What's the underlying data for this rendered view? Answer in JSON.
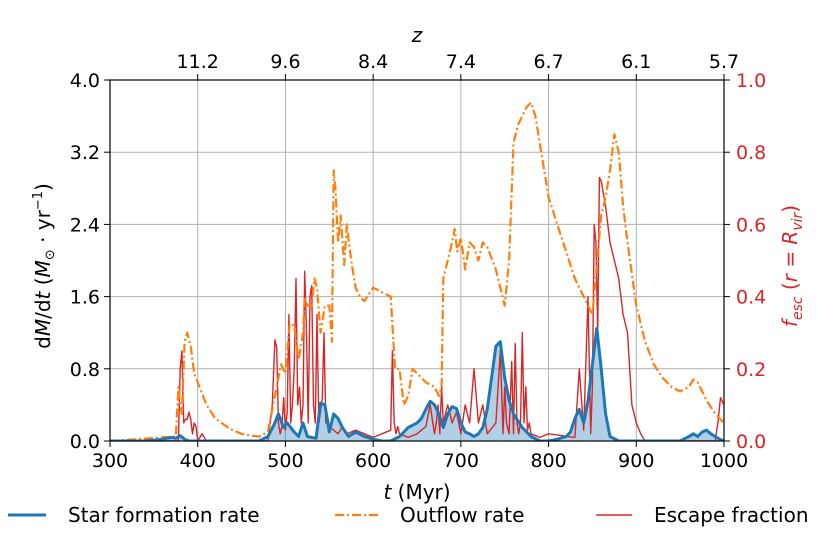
{
  "chart_data": {
    "type": "line",
    "xlabel": "t (Myr)",
    "ylabel": "dM/dt (M⊙ · yr⁻¹)",
    "y2label": "f_esc (r = R_vir)",
    "x2label": "z",
    "xlim": [
      300,
      1000
    ],
    "ylim": [
      0,
      4.0
    ],
    "y2lim": [
      0,
      1.0
    ],
    "grid": true,
    "xticks": [
      "300",
      "400",
      "500",
      "600",
      "700",
      "800",
      "900",
      "1000"
    ],
    "yticks": [
      "0.0",
      "0.8",
      "1.6",
      "2.4",
      "3.2",
      "4.0"
    ],
    "y2ticks": [
      "0.0",
      "0.2",
      "0.4",
      "0.6",
      "0.8",
      "1.0"
    ],
    "top_ticks": [
      {
        "label": "11.2",
        "t": 400
      },
      {
        "label": "9.6",
        "t": 500
      },
      {
        "label": "8.4",
        "t": 600
      },
      {
        "label": "7.4",
        "t": 700
      },
      {
        "label": "6.7",
        "t": 800
      },
      {
        "label": "6.1",
        "t": 900
      },
      {
        "label": "5.7",
        "t": 1000
      }
    ],
    "legend_position": "bottom",
    "colors": {
      "sfr": "#1f77b4",
      "outflow": "#ff7f0e",
      "fesc": "#d62728",
      "grid": "#b0b0b0"
    },
    "series": [
      {
        "name": "Star formation rate",
        "axis": "left",
        "x": [
          300,
          340,
          360,
          370,
          375,
          380,
          385,
          390,
          400,
          470,
          480,
          487,
          492,
          498,
          502,
          510,
          515,
          520,
          525,
          530,
          535,
          540,
          545,
          550,
          555,
          560,
          565,
          572,
          580,
          590,
          600,
          610,
          620,
          630,
          640,
          650,
          655,
          660,
          665,
          670,
          675,
          680,
          685,
          690,
          695,
          700,
          705,
          710,
          715,
          720,
          725,
          730,
          735,
          740,
          745,
          750,
          755,
          760,
          770,
          780,
          790,
          800,
          810,
          820,
          825,
          830,
          835,
          840,
          845,
          850,
          855,
          860,
          865,
          870,
          880,
          900,
          950,
          960,
          965,
          970,
          975,
          980,
          985,
          990,
          995,
          1000
        ],
        "values": [
          0,
          0,
          0.02,
          0.04,
          0.03,
          0.06,
          0.02,
          0.0,
          0,
          0,
          0.05,
          0.18,
          0.3,
          0.15,
          0.2,
          0.1,
          0.05,
          0.2,
          0.05,
          0.04,
          0.03,
          0.42,
          0.4,
          0.1,
          0.3,
          0.25,
          0.15,
          0.05,
          0.1,
          0.05,
          0.02,
          0,
          0,
          0.05,
          0.15,
          0.2,
          0.25,
          0.35,
          0.44,
          0.4,
          0.3,
          0.15,
          0.3,
          0.38,
          0.36,
          0.2,
          0.1,
          0.08,
          0.05,
          0.08,
          0.15,
          0.35,
          0.7,
          1.05,
          1.1,
          0.7,
          0.45,
          0.3,
          0.15,
          0.05,
          0,
          0,
          0.02,
          0.05,
          0.1,
          0.25,
          0.35,
          0.2,
          0.45,
          0.85,
          1.25,
          0.8,
          0.3,
          0.05,
          0,
          0,
          0,
          0.05,
          0.08,
          0.05,
          0.1,
          0.12,
          0.08,
          0.05,
          0.02,
          0
        ]
      },
      {
        "name": "Outflow rate",
        "axis": "left",
        "x": [
          300,
          375,
          378,
          380,
          382,
          385,
          388,
          392,
          396,
          400,
          410,
          420,
          430,
          440,
          450,
          460,
          470,
          480,
          485,
          490,
          495,
          500,
          502,
          505,
          510,
          515,
          520,
          522,
          525,
          530,
          533,
          536,
          540,
          545,
          550,
          553,
          555,
          557,
          560,
          563,
          567,
          570,
          575,
          580,
          585,
          590,
          600,
          610,
          620,
          625,
          630,
          635,
          640,
          645,
          650,
          660,
          670,
          675,
          678,
          680,
          685,
          690,
          693,
          696,
          700,
          705,
          710,
          715,
          720,
          725,
          730,
          740,
          750,
          755,
          760,
          765,
          770,
          775,
          780,
          785,
          790,
          800,
          810,
          820,
          830,
          840,
          850,
          860,
          865,
          870,
          875,
          880,
          885,
          890,
          900,
          910,
          920,
          930,
          940,
          950,
          960,
          965,
          970,
          980,
          990,
          1000
        ],
        "values": [
          0,
          0.05,
          0.6,
          0.4,
          0.3,
          1.1,
          1.2,
          1.05,
          0.75,
          0.65,
          0.4,
          0.25,
          0.18,
          0.12,
          0.08,
          0.06,
          0.05,
          0.1,
          0.35,
          0.6,
          0.85,
          0.75,
          1.0,
          1.3,
          1.28,
          0.9,
          1.2,
          1.6,
          1.5,
          1.5,
          1.8,
          1.7,
          1.2,
          1.5,
          1.5,
          1.1,
          3.0,
          2.8,
          2.2,
          2.5,
          1.95,
          2.4,
          2.0,
          1.7,
          1.6,
          1.55,
          1.7,
          1.65,
          1.6,
          0.8,
          0.8,
          0.4,
          0.5,
          0.8,
          0.75,
          0.65,
          0.6,
          0.5,
          0.6,
          1.8,
          2.0,
          2.2,
          2.35,
          2.1,
          2.25,
          1.9,
          2.2,
          2.15,
          2.0,
          2.2,
          2.15,
          1.9,
          1.5,
          2.0,
          3.3,
          3.5,
          3.6,
          3.7,
          3.75,
          3.6,
          3.3,
          2.7,
          2.4,
          2.1,
          1.8,
          1.6,
          1.4,
          2.5,
          2.7,
          3.0,
          3.4,
          3.2,
          2.6,
          2.2,
          1.5,
          1.1,
          0.85,
          0.7,
          0.6,
          0.55,
          0.6,
          0.68,
          0.65,
          0.45,
          0.3,
          0.2
        ]
      },
      {
        "name": "Escape fraction",
        "axis": "right",
        "x": [
          300,
          378,
          380,
          382,
          384,
          386,
          388,
          390,
          392,
          394,
          396,
          398,
          400,
          405,
          410,
          420,
          480,
          485,
          488,
          490,
          492,
          494,
          496,
          498,
          500,
          502,
          504,
          506,
          508,
          510,
          512,
          514,
          516,
          518,
          520,
          522,
          524,
          526,
          528,
          530,
          532,
          534,
          536,
          538,
          540,
          542,
          544,
          546,
          548,
          550,
          560,
          565,
          570,
          580,
          590,
          600,
          610,
          620,
          622,
          624,
          626,
          628,
          630,
          640,
          650,
          660,
          665,
          668,
          670,
          672,
          674,
          676,
          678,
          680,
          685,
          690,
          695,
          700,
          705,
          710,
          715,
          720,
          725,
          730,
          740,
          745,
          748,
          750,
          752,
          755,
          758,
          760,
          762,
          764,
          766,
          768,
          770,
          772,
          774,
          776,
          778,
          780,
          790,
          800,
          830,
          835,
          840,
          845,
          848,
          850,
          852,
          854,
          856,
          858,
          860,
          865,
          870,
          875,
          880,
          885,
          890,
          895,
          900,
          905,
          910,
          920,
          950,
          980,
          990,
          993,
          996,
          1000
        ],
        "values": [
          0,
          0,
          0.2,
          0.25,
          0.05,
          0.06,
          0.06,
          0.08,
          0.06,
          0.02,
          0.05,
          0.04,
          0,
          0.02,
          0,
          0,
          0,
          0.1,
          0.28,
          0.26,
          0.05,
          0.02,
          0.04,
          0.12,
          0.03,
          0.08,
          0.35,
          0.05,
          0.1,
          0.2,
          0.45,
          0.1,
          0.15,
          0.05,
          0.1,
          0.47,
          0.3,
          0.05,
          0.4,
          0.43,
          0.1,
          0.05,
          0.35,
          0.05,
          0.08,
          0.12,
          0.3,
          0.05,
          0.07,
          0.04,
          0.02,
          0.04,
          0.02,
          0.03,
          0.02,
          0.01,
          0.02,
          0.03,
          0.25,
          0.05,
          0.02,
          0.04,
          0.02,
          0.01,
          0.02,
          0.04,
          0.1,
          0.05,
          0.02,
          0.05,
          0.1,
          0.02,
          0.15,
          0.05,
          0.1,
          0.05,
          0.08,
          0.02,
          0.1,
          0.05,
          0.2,
          0.05,
          0.1,
          0.02,
          0.05,
          0.25,
          0.02,
          0.15,
          0.05,
          0.02,
          0.22,
          0.02,
          0.27,
          0.05,
          0.02,
          0.05,
          0.3,
          0.05,
          0.15,
          0.03,
          0.05,
          0.02,
          0.01,
          0.02,
          0.01,
          0.2,
          0.03,
          0.4,
          0.02,
          0.15,
          0.6,
          0.55,
          0.3,
          0.73,
          0.72,
          0.65,
          0.55,
          0.5,
          0.45,
          0.35,
          0.3,
          0.1,
          0.05,
          0.02,
          0,
          0,
          0,
          0,
          0,
          0.05,
          0.12,
          0.1
        ]
      }
    ]
  }
}
